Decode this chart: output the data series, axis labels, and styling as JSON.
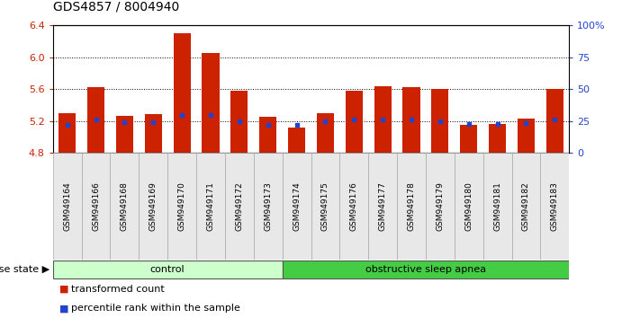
{
  "title": "GDS4857 / 8004940",
  "samples": [
    "GSM949164",
    "GSM949166",
    "GSM949168",
    "GSM949169",
    "GSM949170",
    "GSM949171",
    "GSM949172",
    "GSM949173",
    "GSM949174",
    "GSM949175",
    "GSM949176",
    "GSM949177",
    "GSM949178",
    "GSM949179",
    "GSM949180",
    "GSM949181",
    "GSM949182",
    "GSM949183"
  ],
  "bar_values": [
    5.3,
    5.62,
    5.26,
    5.29,
    6.3,
    6.05,
    5.58,
    5.25,
    5.12,
    5.3,
    5.58,
    5.63,
    5.62,
    5.6,
    5.15,
    5.16,
    5.23,
    5.6
  ],
  "percentile_values": [
    5.15,
    5.22,
    5.18,
    5.18,
    5.27,
    5.27,
    5.2,
    5.15,
    5.15,
    5.2,
    5.22,
    5.22,
    5.22,
    5.2,
    5.16,
    5.16,
    5.17,
    5.22
  ],
  "ymin": 4.8,
  "ymax": 6.4,
  "bar_color": "#cc2200",
  "blue_color": "#2244cc",
  "yticks_left": [
    4.8,
    5.2,
    5.6,
    6.0,
    6.4
  ],
  "yticks_right": [
    0,
    25,
    50,
    75,
    100
  ],
  "grid_values": [
    5.2,
    5.6,
    6.0
  ],
  "groups": [
    {
      "label": "control",
      "start": 0,
      "end": 8,
      "color": "#ccffcc"
    },
    {
      "label": "obstructive sleep apnea",
      "start": 8,
      "end": 18,
      "color": "#44cc44"
    }
  ],
  "legend_items": [
    {
      "label": "transformed count",
      "color": "#cc2200"
    },
    {
      "label": "percentile rank within the sample",
      "color": "#2244cc"
    }
  ],
  "disease_state_label": "disease state",
  "bar_width": 0.6
}
